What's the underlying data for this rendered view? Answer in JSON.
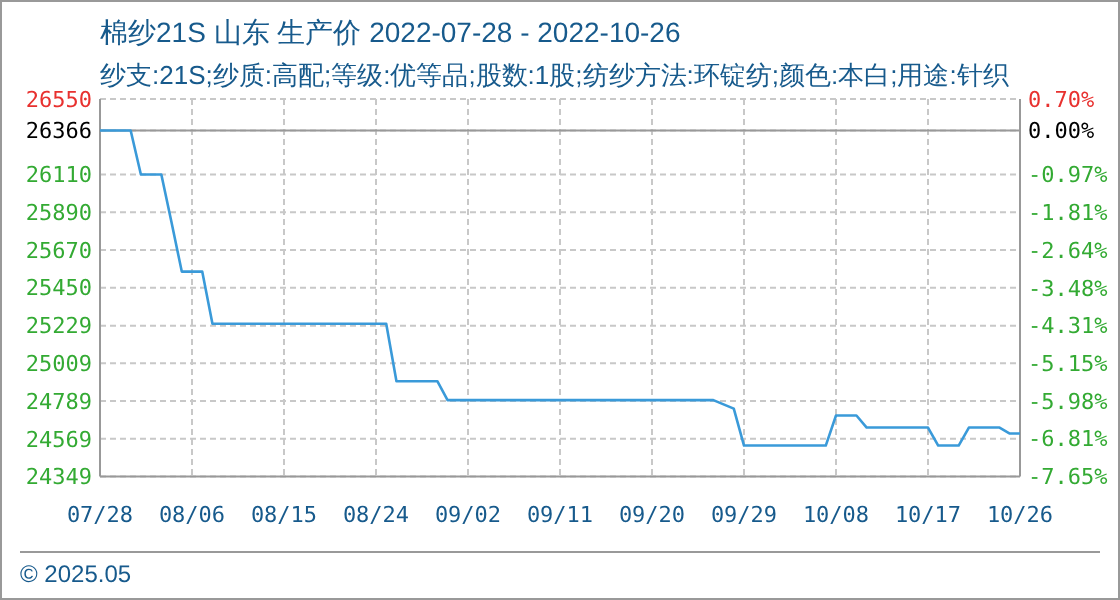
{
  "chart_data": {
    "type": "line",
    "title": "棉纱21S 山东 生产价 2022-07-28 - 2022-10-26",
    "subtitle": "纱支:21S;纱质:高配;等级:优等品;股数:1股;纺纱方法:环锭纺;颜色:本白;用途:针织",
    "x": [
      "2022-07-28",
      "2022-07-31",
      "2022-08-01",
      "2022-08-03",
      "2022-08-04",
      "2022-08-05",
      "2022-08-07",
      "2022-08-08",
      "2022-08-25",
      "2022-08-26",
      "2022-08-30",
      "2022-08-31",
      "2022-09-26",
      "2022-09-28",
      "2022-09-29",
      "2022-10-07",
      "2022-10-08",
      "2022-10-10",
      "2022-10-11",
      "2022-10-17",
      "2022-10-18",
      "2022-10-20",
      "2022-10-21",
      "2022-10-24",
      "2022-10-25",
      "2022-10-26"
    ],
    "series": [
      {
        "color": "#3a9ad9",
        "values": [
          26366,
          26366,
          26110,
          26110,
          25830,
          25544,
          25544,
          25240,
          25240,
          24905,
          24905,
          24795,
          24795,
          24745,
          24530,
          24530,
          24705,
          24705,
          24635,
          24635,
          24530,
          24530,
          24635,
          24635,
          24600,
          24600
        ]
      }
    ],
    "xlim": [
      "2022-07-28",
      "2022-10-26"
    ],
    "xticks": [
      {
        "value": "2022-07-28",
        "label": "07/28"
      },
      {
        "value": "2022-08-06",
        "label": "08/06"
      },
      {
        "value": "2022-08-15",
        "label": "08/15"
      },
      {
        "value": "2022-08-24",
        "label": "08/24"
      },
      {
        "value": "2022-09-02",
        "label": "09/02"
      },
      {
        "value": "2022-09-11",
        "label": "09/11"
      },
      {
        "value": "2022-09-20",
        "label": "09/20"
      },
      {
        "value": "2022-09-29",
        "label": "09/29"
      },
      {
        "value": "2022-10-08",
        "label": "10/08"
      },
      {
        "value": "2022-10-17",
        "label": "10/17"
      },
      {
        "value": "2022-10-26",
        "label": "10/26"
      }
    ],
    "ylim": [
      24349,
      26550
    ],
    "yticks": [
      26550,
      26366,
      26110,
      25890,
      25670,
      25450,
      25229,
      25009,
      24789,
      24569,
      24349
    ],
    "y2lim": [
      -7.65,
      0.7
    ],
    "y2ticks": [
      {
        "value": 0.7,
        "label": "0.70%"
      },
      {
        "value": 0,
        "label": "0.00%"
      },
      {
        "value": -0.97,
        "label": "-0.97%"
      },
      {
        "value": -1.81,
        "label": "-1.81%"
      },
      {
        "value": -2.64,
        "label": "-2.64%"
      },
      {
        "value": -3.48,
        "label": "-3.48%"
      },
      {
        "value": -4.31,
        "label": "-4.31%"
      },
      {
        "value": -5.15,
        "label": "-5.15%"
      },
      {
        "value": -5.98,
        "label": "-5.98%"
      },
      {
        "value": -6.81,
        "label": "-6.81%"
      },
      {
        "value": -7.65,
        "label": "-7.65%"
      }
    ],
    "grid": true,
    "line_style": "solid",
    "marker": "none",
    "annotations": [
      "© 2025.05"
    ]
  }
}
